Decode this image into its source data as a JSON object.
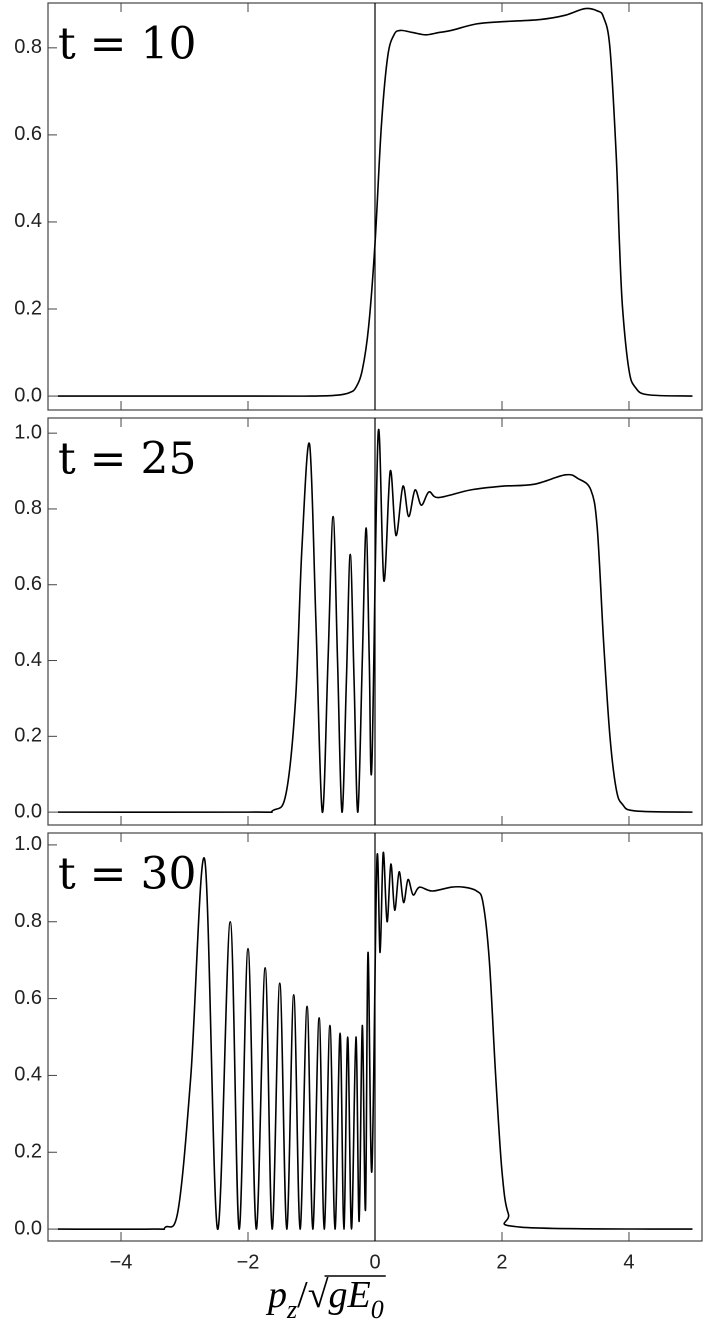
{
  "chart_data": [
    {
      "type": "line",
      "annotation": "t = 10",
      "color": "#000000",
      "xlim": [
        -5.15,
        5.15
      ],
      "ylim": [
        -0.032,
        0.903
      ],
      "xticks": [
        -4,
        -2,
        0,
        2,
        4
      ],
      "yticks": [
        {
          "value": 0,
          "label": "0.0"
        },
        0.2,
        0.4,
        0.6,
        0.8
      ],
      "x": [
        -5,
        -2,
        -1,
        -0.6,
        -0.4,
        -0.3,
        -0.2,
        -0.1,
        0,
        0.1,
        0.2,
        0.3,
        0.4,
        0.6,
        0.8,
        1.0,
        1.2,
        1.6,
        2.0,
        2.6,
        3.0,
        3.3,
        3.5,
        3.6,
        3.7,
        3.8,
        3.85,
        3.9,
        4.0,
        4.1,
        4.3,
        5
      ],
      "values": [
        0,
        0,
        0,
        0.002,
        0.008,
        0.02,
        0.06,
        0.16,
        0.35,
        0.62,
        0.78,
        0.83,
        0.84,
        0.835,
        0.83,
        0.835,
        0.84,
        0.855,
        0.86,
        0.865,
        0.875,
        0.89,
        0.885,
        0.87,
        0.8,
        0.55,
        0.35,
        0.2,
        0.06,
        0.02,
        0.003,
        0
      ]
    },
    {
      "type": "line",
      "annotation": "t = 25",
      "color": "#000000",
      "xlim": [
        -5.15,
        5.15
      ],
      "ylim": [
        -0.034,
        1.04
      ],
      "xticks": [
        -4,
        -2,
        0,
        2,
        4
      ],
      "yticks": [
        {
          "value": 0,
          "label": "0.0"
        },
        0.2,
        0.4,
        0.6,
        0.8,
        {
          "value": 1,
          "label": "1.0"
        }
      ],
      "x": [
        -5,
        -2,
        -1.6,
        -1.4,
        -1.25,
        -1.15,
        -1.03,
        -0.93,
        -0.83,
        -0.74,
        -0.66,
        -0.59,
        -0.52,
        -0.45,
        -0.39,
        -0.33,
        -0.27,
        -0.2,
        -0.14,
        -0.09,
        -0.05,
        0.05,
        0.14,
        0.24,
        0.33,
        0.44,
        0.53,
        0.63,
        0.73,
        0.85,
        1.0,
        1.5,
        2.0,
        2.5,
        3.0,
        3.2,
        3.4,
        3.5,
        3.6,
        3.7,
        3.8,
        3.9,
        4.1,
        5
      ],
      "values": [
        0,
        0,
        0.005,
        0.05,
        0.3,
        0.7,
        0.97,
        0.5,
        0,
        0.4,
        0.78,
        0.4,
        0,
        0.35,
        0.68,
        0.35,
        0,
        0.4,
        0.75,
        0.4,
        0.12,
        1.0,
        0.61,
        0.9,
        0.73,
        0.86,
        0.78,
        0.85,
        0.81,
        0.845,
        0.83,
        0.85,
        0.86,
        0.865,
        0.89,
        0.88,
        0.85,
        0.75,
        0.45,
        0.2,
        0.06,
        0.02,
        0.003,
        0
      ]
    },
    {
      "type": "line",
      "annotation": "t = 30",
      "color": "#000000",
      "xlim": [
        -5.15,
        5.15
      ],
      "ylim": [
        -0.031,
        1.031
      ],
      "xticks": [
        {
          "value": -4,
          "label": "−4"
        },
        {
          "value": -2,
          "label": "−2"
        },
        0,
        2,
        4
      ],
      "yticks": [
        {
          "value": 0,
          "label": "0.0"
        },
        0.2,
        0.4,
        0.6,
        0.8,
        {
          "value": 1,
          "label": "1.0"
        }
      ],
      "xlabel": [
        "p",
        "z",
        "/",
        "√",
        "gE",
        "0"
      ],
      "x": [
        -5,
        -3.5,
        -3.3,
        -3.1,
        -2.9,
        -2.68,
        -2.48,
        -2.28,
        -2.14,
        -2.0,
        -1.87,
        -1.73,
        -1.62,
        -1.5,
        -1.39,
        -1.28,
        -1.18,
        -1.07,
        -0.98,
        -0.88,
        -0.8,
        -0.71,
        -0.63,
        -0.55,
        -0.49,
        -0.43,
        -0.37,
        -0.3,
        -0.25,
        -0.2,
        -0.15,
        -0.11,
        -0.05,
        0.03,
        0.08,
        0.13,
        0.19,
        0.25,
        0.31,
        0.38,
        0.45,
        0.52,
        0.6,
        0.7,
        0.9,
        1.2,
        1.4,
        1.6,
        1.7,
        1.8,
        1.9,
        2.0,
        2.1,
        2.3,
        5
      ],
      "values": [
        0,
        0,
        0.005,
        0.05,
        0.4,
        0.96,
        0,
        0.8,
        0,
        0.73,
        0,
        0.68,
        0,
        0.64,
        0,
        0.61,
        0,
        0.58,
        0,
        0.55,
        0,
        0.53,
        0,
        0.51,
        0,
        0.5,
        0,
        0.5,
        0.02,
        0.53,
        0.05,
        0.72,
        0.15,
        0.96,
        0.72,
        0.98,
        0.8,
        0.95,
        0.83,
        0.93,
        0.85,
        0.91,
        0.87,
        0.89,
        0.88,
        0.89,
        0.89,
        0.88,
        0.85,
        0.7,
        0.4,
        0.15,
        0.04,
        0.005,
        0
      ]
    }
  ]
}
